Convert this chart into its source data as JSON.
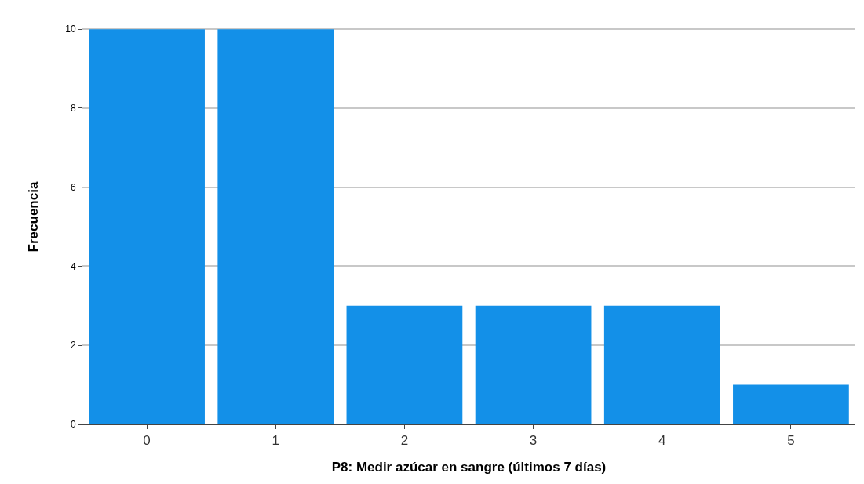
{
  "chart_data": {
    "type": "bar",
    "xlabel": "P8: Medir azúcar en sangre (últimos 7 días)",
    "ylabel": "Frecuencia",
    "categories": [
      "0",
      "1",
      "2",
      "3",
      "4",
      "5"
    ],
    "values": [
      10,
      10,
      3,
      3,
      3,
      1
    ],
    "color": "#1390e8",
    "ylim": [
      0,
      10.5
    ],
    "yticks": [
      0,
      2,
      4,
      6,
      8,
      10
    ],
    "grid": "y"
  }
}
